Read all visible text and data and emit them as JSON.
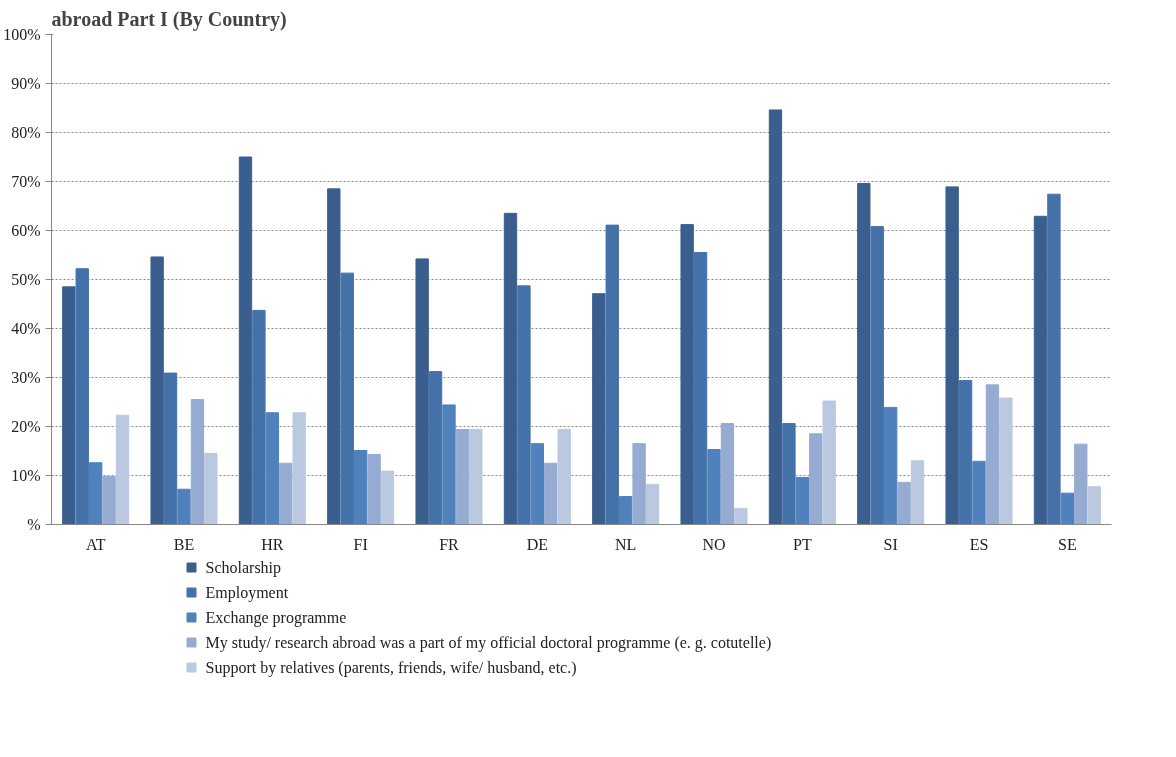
{
  "chart_data": {
    "type": "bar",
    "title": "abroad Part I (By Country)",
    "categories": [
      "AT",
      "BE",
      "HR",
      "FI",
      "FR",
      "DE",
      "NL",
      "NO",
      "PT",
      "SI",
      "ES",
      "SE"
    ],
    "series": [
      {
        "name": "Scholarship",
        "color": "#3a5f8f",
        "values": [
          48.5,
          54.6,
          75,
          68.5,
          54.2,
          63.5,
          47.1,
          61.2,
          84.6,
          69.6,
          68.9,
          62.9
        ]
      },
      {
        "name": "Employment",
        "color": "#4472a8",
        "values": [
          52.2,
          30.9,
          43.7,
          51.3,
          31.2,
          48.7,
          61.1,
          55.5,
          20.6,
          60.8,
          29.4,
          67.4
        ]
      },
      {
        "name": "Exchange programme",
        "color": "#4f81bd",
        "values": [
          12.6,
          7.2,
          22.8,
          15.1,
          24.4,
          16.5,
          5.7,
          15.3,
          9.6,
          23.9,
          12.9,
          6.4
        ]
      },
      {
        "name": "My study/ research abroad was a part of my official doctoral programme (e. g. cotutelle)",
        "color": "#95abd2",
        "values": [
          9.8,
          25.5,
          12.5,
          14.3,
          19.4,
          12.5,
          16.5,
          20.6,
          18.5,
          8.6,
          28.5,
          16.4
        ]
      },
      {
        "name": "Support by relatives (parents, friends, wife/ husband, etc.)",
        "color": "#bac8e0",
        "values": [
          22.3,
          14.5,
          22.8,
          10.9,
          19.4,
          19.4,
          8.2,
          3.3,
          25.2,
          13.0,
          25.8,
          7.7
        ]
      }
    ],
    "ylim": [
      0,
      100
    ],
    "yticks": [
      {
        "value": 0,
        "label": "%"
      },
      {
        "value": 10,
        "label": "10%"
      },
      {
        "value": 20,
        "label": "20%"
      },
      {
        "value": 30,
        "label": "30%"
      },
      {
        "value": 40,
        "label": "40%"
      },
      {
        "value": 50,
        "label": "50%"
      },
      {
        "value": 60,
        "label": "60%"
      },
      {
        "value": 70,
        "label": "70%"
      },
      {
        "value": 80,
        "label": "80%"
      },
      {
        "value": 90,
        "label": "90%"
      },
      {
        "value": 100,
        "label": "100%"
      }
    ],
    "grid": "y",
    "legend": "bottom"
  }
}
